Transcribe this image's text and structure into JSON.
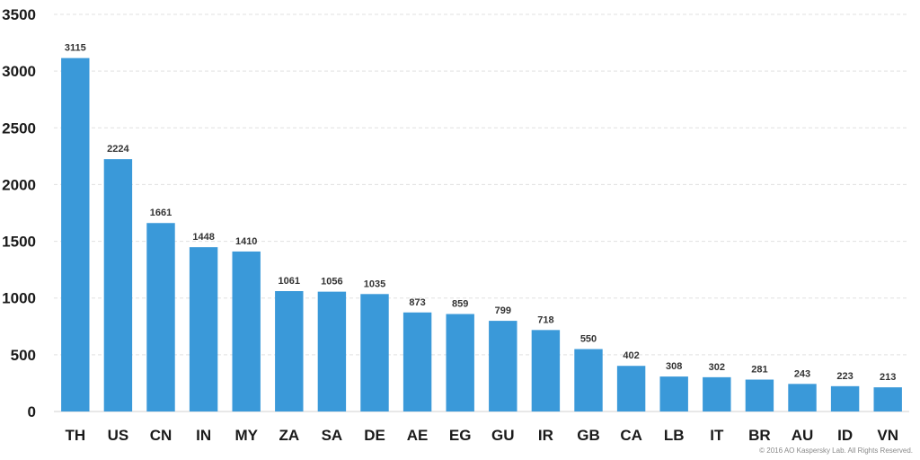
{
  "chart_data": {
    "type": "bar",
    "title": "",
    "xlabel": "",
    "ylabel": "",
    "categories": [
      "TH",
      "US",
      "CN",
      "IN",
      "MY",
      "ZA",
      "SA",
      "DE",
      "AE",
      "EG",
      "GU",
      "IR",
      "GB",
      "CA",
      "LB",
      "IT",
      "BR",
      "AU",
      "ID",
      "VN"
    ],
    "values": [
      3115,
      2224,
      1661,
      1448,
      1410,
      1061,
      1056,
      1035,
      873,
      859,
      799,
      718,
      550,
      402,
      308,
      302,
      281,
      243,
      223,
      213
    ],
    "ylim": [
      0,
      3500
    ],
    "yticks": [
      0,
      500,
      1000,
      1500,
      2000,
      2500,
      3000,
      3500
    ],
    "grid": true,
    "legend": "none",
    "bar_color": "#3a99d9",
    "grid_color": "#e0e0e0"
  },
  "footer": {
    "copyright": "© 2016 AO Kaspersky Lab. All Rights Reserved."
  }
}
